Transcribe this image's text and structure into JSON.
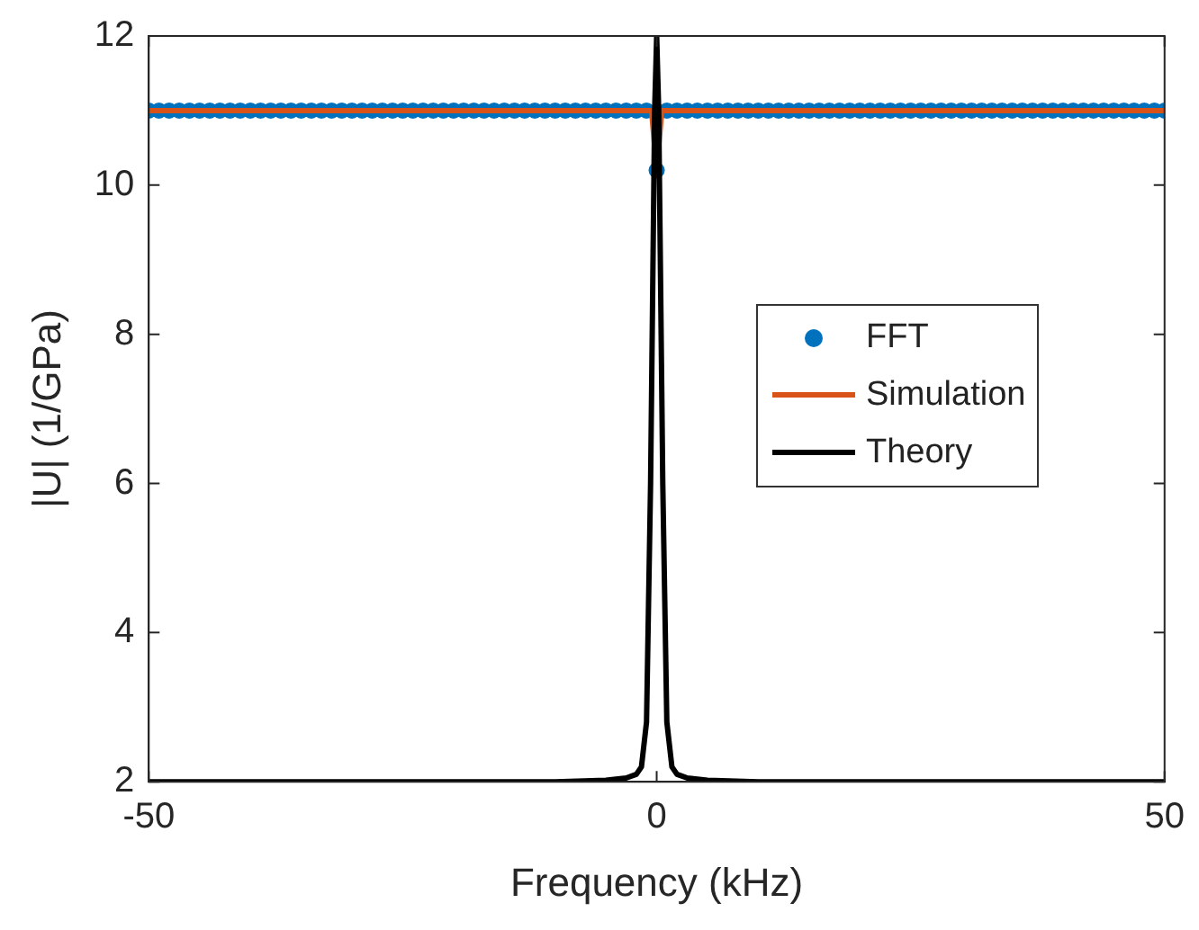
{
  "chart_data": {
    "type": "line",
    "xlabel": "Frequency (kHz)",
    "ylabel": "|U| (1/GPa)",
    "xlim": [
      -50,
      50
    ],
    "xticks": [
      -50,
      0,
      50
    ],
    "ylim": [
      2,
      12
    ],
    "yticks": [
      2,
      4,
      6,
      8,
      10,
      12
    ],
    "grid": false,
    "legend": "right",
    "series": [
      {
        "name": "FFT",
        "type": "scatter",
        "marker": "circle",
        "color": "#0072bd",
        "x": [
          -50,
          -49,
          -48,
          -47,
          -46,
          -45,
          -44,
          -43,
          -42,
          -41,
          -40,
          -39,
          -38,
          -37,
          -36,
          -35,
          -34,
          -33,
          -32,
          -31,
          -30,
          -29,
          -28,
          -27,
          -26,
          -25,
          -24,
          -23,
          -22,
          -21,
          -20,
          -19,
          -18,
          -17,
          -16,
          -15,
          -14,
          -13,
          -12,
          -11,
          -10,
          -9,
          -8,
          -7,
          -6,
          -5,
          -4,
          -3,
          -2,
          -1,
          0,
          1,
          2,
          3,
          4,
          5,
          6,
          7,
          8,
          9,
          10,
          11,
          12,
          13,
          14,
          15,
          16,
          17,
          18,
          19,
          20,
          21,
          22,
          23,
          24,
          25,
          26,
          27,
          28,
          29,
          30,
          31,
          32,
          33,
          34,
          35,
          36,
          37,
          38,
          39,
          40,
          41,
          42,
          43,
          44,
          45,
          46,
          47,
          48,
          49,
          50
        ],
        "values": [
          11,
          11,
          11,
          11,
          11,
          11,
          11,
          11,
          11,
          11,
          11,
          11,
          11,
          11,
          11,
          11,
          11,
          11,
          11,
          11,
          11,
          11,
          11,
          11,
          11,
          11,
          11,
          11,
          11,
          11,
          11,
          11,
          11,
          11,
          11,
          11,
          11,
          11,
          11,
          11,
          11,
          11,
          11,
          11,
          11,
          11,
          11,
          11,
          11,
          11,
          10.2,
          11,
          11,
          11,
          11,
          11,
          11,
          11,
          11,
          11,
          11,
          11,
          11,
          11,
          11,
          11,
          11,
          11,
          11,
          11,
          11,
          11,
          11,
          11,
          11,
          11,
          11,
          11,
          11,
          11,
          11,
          11,
          11,
          11,
          11,
          11,
          11,
          11,
          11,
          11,
          11,
          11,
          11,
          11,
          11,
          11,
          11,
          11,
          11,
          11,
          11
        ]
      },
      {
        "name": "Simulation",
        "type": "line",
        "marker": "none",
        "line_style": "solid",
        "color": "#d95319",
        "x": [
          -50,
          -0.5,
          0,
          0.5,
          50
        ],
        "values": [
          11,
          11,
          10.2,
          11,
          11
        ]
      },
      {
        "name": "Theory",
        "type": "line",
        "marker": "none",
        "line_style": "solid",
        "color": "#000000",
        "x": [
          -50,
          -20,
          -10,
          -5,
          -3,
          -2,
          -1.5,
          -1,
          -0.8,
          -0.6,
          -0.4,
          -0.2,
          0,
          0.2,
          0.4,
          0.6,
          0.8,
          1,
          1.5,
          2,
          3,
          5,
          10,
          20,
          50
        ],
        "values": [
          2,
          2,
          2,
          2.02,
          2.05,
          2.1,
          2.2,
          2.8,
          4.4,
          6,
          8.5,
          11,
          12,
          11,
          8.5,
          6,
          4.4,
          2.8,
          2.2,
          2.1,
          2.05,
          2.02,
          2,
          2,
          2
        ]
      }
    ]
  }
}
